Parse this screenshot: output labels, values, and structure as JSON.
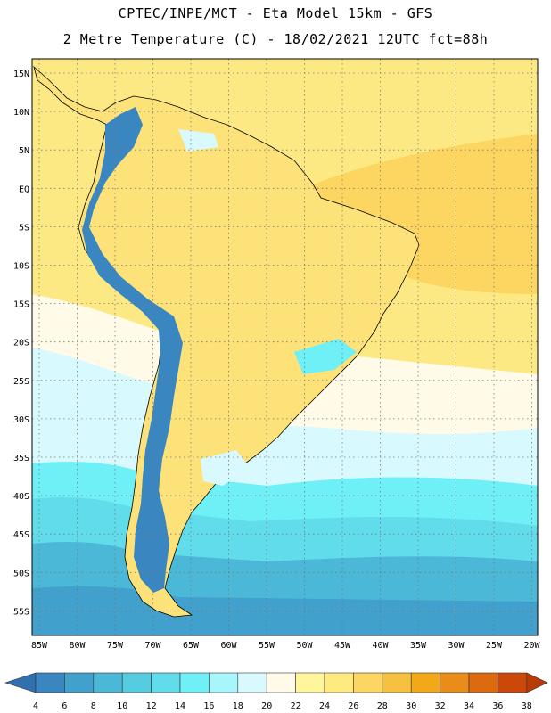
{
  "title_line1": "CPTEC/INPE/MCT -  Eta Model 15km - GFS",
  "title_line2": "2 Metre Temperature (C) - 18/02/2021 12UTC fct=88h",
  "lat_labels": [
    "15N",
    "10N",
    "5N",
    "EQ",
    "5S",
    "10S",
    "15S",
    "20S",
    "25S",
    "30S",
    "35S",
    "40S",
    "45S",
    "50S",
    "55S"
  ],
  "lon_labels": [
    "85W",
    "80W",
    "75W",
    "70W",
    "65W",
    "60W",
    "55W",
    "50W",
    "45W",
    "40W",
    "35W",
    "30W",
    "25W",
    "20W"
  ],
  "colorbar": {
    "labels": [
      "4",
      "6",
      "8",
      "10",
      "12",
      "14",
      "16",
      "18",
      "20",
      "22",
      "24",
      "26",
      "28",
      "30",
      "32",
      "34",
      "36",
      "38"
    ],
    "colors": [
      "#3070b0",
      "#3a86c0",
      "#42a0cc",
      "#4cb8d8",
      "#56cce0",
      "#60dcea",
      "#6ef0f6",
      "#a6f6fc",
      "#d8fafe",
      "#fffbe8",
      "#fff59a",
      "#feea7e",
      "#fcd660",
      "#f6c040",
      "#f3a818",
      "#ea8c1a",
      "#de6a10",
      "#cc4808",
      "#b83a06"
    ]
  },
  "map_colors": {
    "ocean_tropical": "#fde984",
    "ocean_band_26": "#fcd660",
    "ocean_band_22": "#fffbe8",
    "ocean_band_20": "#d8fafe",
    "ocean_band_16": "#6ef0f6",
    "ocean_band_14": "#60dcea",
    "ocean_band_12": "#4cb8d8",
    "ocean_band_10": "#42a0cc",
    "land_main": "#fde27a",
    "andes": "#3a86c0"
  }
}
